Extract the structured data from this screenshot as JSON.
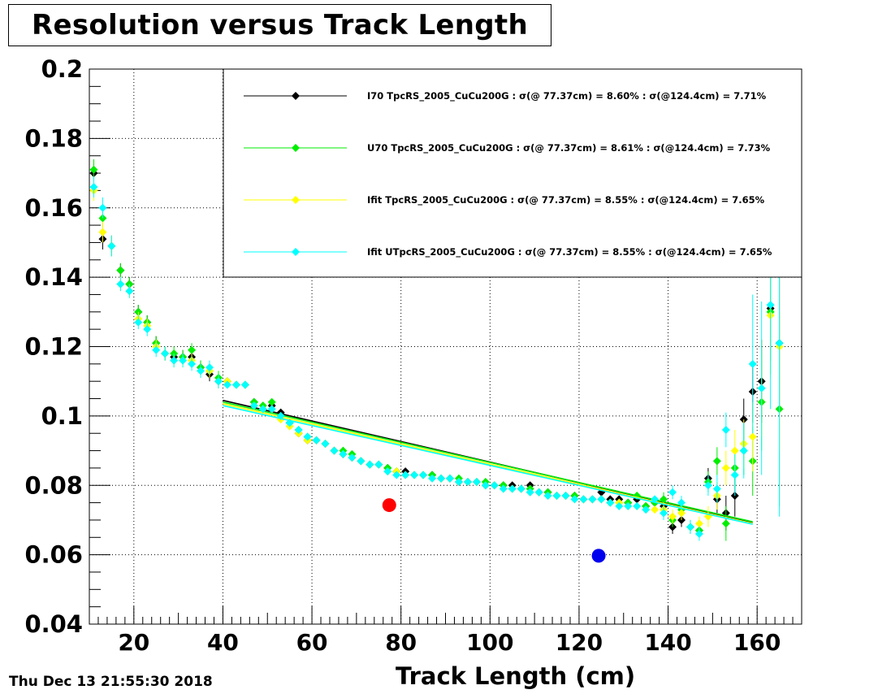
{
  "chart_data": {
    "type": "scatter",
    "title": "Resolution versus Track Length",
    "xlabel": "Track Length (cm)",
    "ylabel": "",
    "xlim": [
      10,
      170
    ],
    "ylim": [
      0.04,
      0.2
    ],
    "xticks": [
      20,
      40,
      60,
      80,
      100,
      120,
      140,
      160
    ],
    "yticks": [
      0.04,
      0.06,
      0.08,
      0.1,
      0.12,
      0.14,
      0.16,
      0.18,
      0.2
    ],
    "ytick_labels": [
      "0.04",
      "0.06",
      "0.08",
      "0.1",
      "0.12",
      "0.14",
      "0.16",
      "0.18",
      "0.2"
    ],
    "grid": true,
    "legend_position": "top-right",
    "timestamp": "Thu Dec 13 21:55:30 2018",
    "series": [
      {
        "name": "I70  TpcRS_2005_CuCu200G : σ(@ 77.37cm) =  8.60% : σ(@124.4cm) =  7.71%",
        "color": "#000000",
        "x": [
          11,
          13,
          15,
          17,
          19,
          21,
          23,
          25,
          27,
          29,
          31,
          33,
          35,
          37,
          39,
          41,
          43,
          45,
          47,
          49,
          51,
          53,
          55,
          57,
          59,
          61,
          63,
          65,
          67,
          69,
          71,
          73,
          75,
          77,
          79,
          81,
          83,
          85,
          87,
          89,
          91,
          93,
          95,
          97,
          99,
          101,
          103,
          105,
          107,
          109,
          111,
          113,
          115,
          117,
          119,
          121,
          123,
          125,
          127,
          129,
          131,
          133,
          135,
          137,
          139,
          141,
          143,
          145,
          147,
          149,
          151,
          153,
          155,
          157,
          159,
          161,
          163,
          165
        ],
        "y": [
          0.17,
          0.151,
          0.149,
          0.142,
          0.138,
          0.13,
          0.127,
          0.121,
          0.118,
          0.117,
          0.117,
          0.117,
          0.114,
          0.112,
          0.11,
          0.11,
          0.109,
          0.109,
          0.104,
          0.102,
          0.103,
          0.101,
          0.098,
          0.095,
          0.093,
          0.093,
          0.092,
          0.09,
          0.089,
          0.088,
          0.087,
          0.086,
          0.086,
          0.085,
          0.084,
          0.084,
          0.083,
          0.083,
          0.083,
          0.082,
          0.082,
          0.081,
          0.081,
          0.081,
          0.08,
          0.08,
          0.08,
          0.08,
          0.079,
          0.08,
          0.078,
          0.078,
          0.077,
          0.077,
          0.077,
          0.076,
          0.076,
          0.078,
          0.076,
          0.076,
          0.075,
          0.076,
          0.074,
          0.075,
          0.074,
          0.068,
          0.07,
          0.068,
          0.067,
          0.082,
          0.076,
          0.072,
          0.077,
          0.099,
          0.107,
          0.11,
          0.131,
          0.121
        ],
        "yerr": [
          0.003,
          0.003,
          0.003,
          0.002,
          0.002,
          0.002,
          0.002,
          0.002,
          0.002,
          0.002,
          0.002,
          0.002,
          0.002,
          0.002,
          0.002,
          0.001,
          0.001,
          0.001,
          0.001,
          0.001,
          0.001,
          0.001,
          0.001,
          0.001,
          0.001,
          0.001,
          0.001,
          0.001,
          0.001,
          0.001,
          0.001,
          0.001,
          0.001,
          0.001,
          0.001,
          0.001,
          0.001,
          0.001,
          0.001,
          0.001,
          0.001,
          0.001,
          0.001,
          0.001,
          0.001,
          0.001,
          0.001,
          0.001,
          0.001,
          0.001,
          0.001,
          0.001,
          0.001,
          0.001,
          0.001,
          0.001,
          0.001,
          0.001,
          0.001,
          0.001,
          0.001,
          0.001,
          0.001,
          0.001,
          0.002,
          0.002,
          0.002,
          0.002,
          0.002,
          0.003,
          0.004,
          0.005,
          0.006,
          0.006,
          0.009,
          0.012,
          0.015,
          0.02
        ],
        "fit_x": [
          40,
          159
        ],
        "fit_y": [
          0.1045,
          0.0692
        ]
      },
      {
        "name": "U70  TpcRS_2005_CuCu200G : σ(@ 77.37cm) =  8.61% : σ(@124.4cm) =  7.73%",
        "color": "#00ee00",
        "x": [
          11,
          13,
          15,
          17,
          19,
          21,
          23,
          25,
          27,
          29,
          31,
          33,
          35,
          37,
          39,
          41,
          43,
          45,
          47,
          49,
          51,
          53,
          55,
          57,
          59,
          61,
          63,
          65,
          67,
          69,
          71,
          73,
          75,
          77,
          79,
          81,
          83,
          85,
          87,
          89,
          91,
          93,
          95,
          97,
          99,
          101,
          103,
          105,
          107,
          109,
          111,
          113,
          115,
          117,
          119,
          121,
          123,
          125,
          127,
          129,
          131,
          133,
          135,
          137,
          139,
          141,
          143,
          145,
          147,
          149,
          151,
          153,
          155,
          157,
          159,
          161,
          163,
          165
        ],
        "y": [
          0.171,
          0.157,
          0.149,
          0.142,
          0.138,
          0.13,
          0.127,
          0.121,
          0.118,
          0.118,
          0.117,
          0.119,
          0.114,
          0.113,
          0.111,
          0.11,
          0.109,
          0.109,
          0.104,
          0.103,
          0.104,
          0.1,
          0.098,
          0.096,
          0.094,
          0.093,
          0.092,
          0.09,
          0.09,
          0.089,
          0.087,
          0.086,
          0.086,
          0.085,
          0.084,
          0.083,
          0.083,
          0.083,
          0.083,
          0.082,
          0.082,
          0.082,
          0.081,
          0.081,
          0.081,
          0.08,
          0.08,
          0.079,
          0.079,
          0.079,
          0.078,
          0.078,
          0.077,
          0.077,
          0.077,
          0.076,
          0.076,
          0.076,
          0.075,
          0.075,
          0.075,
          0.077,
          0.074,
          0.075,
          0.076,
          0.07,
          0.073,
          0.068,
          0.067,
          0.081,
          0.087,
          0.069,
          0.085,
          0.09,
          0.087,
          0.104,
          0.13,
          0.102
        ],
        "yerr": [
          0.003,
          0.003,
          0.003,
          0.002,
          0.002,
          0.002,
          0.002,
          0.002,
          0.002,
          0.002,
          0.002,
          0.002,
          0.002,
          0.002,
          0.002,
          0.001,
          0.001,
          0.001,
          0.001,
          0.001,
          0.001,
          0.001,
          0.001,
          0.001,
          0.001,
          0.001,
          0.001,
          0.001,
          0.001,
          0.001,
          0.001,
          0.001,
          0.001,
          0.001,
          0.001,
          0.001,
          0.001,
          0.001,
          0.001,
          0.001,
          0.001,
          0.001,
          0.001,
          0.001,
          0.001,
          0.001,
          0.001,
          0.001,
          0.001,
          0.001,
          0.001,
          0.001,
          0.001,
          0.001,
          0.001,
          0.001,
          0.001,
          0.001,
          0.001,
          0.001,
          0.001,
          0.001,
          0.001,
          0.001,
          0.002,
          0.002,
          0.002,
          0.002,
          0.002,
          0.003,
          0.004,
          0.005,
          0.006,
          0.007,
          0.01,
          0.014,
          0.018,
          0.028
        ],
        "fit_x": [
          40,
          159
        ],
        "fit_y": [
          0.104,
          0.0695
        ]
      },
      {
        "name": "Ifit TpcRS_2005_CuCu200G : σ(@ 77.37cm) =  8.55% : σ(@124.4cm) =  7.65%",
        "color": "#ffff00",
        "x": [
          11,
          13,
          15,
          17,
          19,
          21,
          23,
          25,
          27,
          29,
          31,
          33,
          35,
          37,
          39,
          41,
          43,
          45,
          47,
          49,
          51,
          53,
          55,
          57,
          59,
          61,
          63,
          65,
          67,
          69,
          71,
          73,
          75,
          77,
          79,
          81,
          83,
          85,
          87,
          89,
          91,
          93,
          95,
          97,
          99,
          101,
          103,
          105,
          107,
          109,
          111,
          113,
          115,
          117,
          119,
          121,
          123,
          125,
          127,
          129,
          131,
          133,
          135,
          137,
          139,
          141,
          143,
          145,
          147,
          149,
          151,
          153,
          155,
          157,
          159,
          161,
          163,
          165
        ],
        "y": [
          0.165,
          0.153,
          0.149,
          0.138,
          0.136,
          0.128,
          0.126,
          0.12,
          0.118,
          0.116,
          0.116,
          0.116,
          0.113,
          0.113,
          0.11,
          0.11,
          0.109,
          0.109,
          0.103,
          0.102,
          0.102,
          0.099,
          0.097,
          0.095,
          0.093,
          0.093,
          0.092,
          0.09,
          0.089,
          0.088,
          0.087,
          0.086,
          0.086,
          0.084,
          0.084,
          0.083,
          0.083,
          0.083,
          0.082,
          0.082,
          0.082,
          0.081,
          0.081,
          0.081,
          0.08,
          0.08,
          0.079,
          0.079,
          0.079,
          0.078,
          0.078,
          0.077,
          0.077,
          0.077,
          0.076,
          0.076,
          0.076,
          0.076,
          0.075,
          0.075,
          0.074,
          0.074,
          0.073,
          0.073,
          0.073,
          0.071,
          0.072,
          0.068,
          0.069,
          0.071,
          0.077,
          0.085,
          0.09,
          0.092,
          0.094,
          0.108,
          0.129,
          0.12
        ],
        "yerr": [
          0.003,
          0.003,
          0.003,
          0.002,
          0.002,
          0.002,
          0.002,
          0.002,
          0.002,
          0.002,
          0.002,
          0.002,
          0.002,
          0.002,
          0.002,
          0.001,
          0.001,
          0.001,
          0.001,
          0.001,
          0.001,
          0.001,
          0.001,
          0.001,
          0.001,
          0.001,
          0.001,
          0.001,
          0.001,
          0.001,
          0.001,
          0.001,
          0.001,
          0.001,
          0.001,
          0.001,
          0.001,
          0.001,
          0.001,
          0.001,
          0.001,
          0.001,
          0.001,
          0.001,
          0.001,
          0.001,
          0.001,
          0.001,
          0.001,
          0.001,
          0.001,
          0.001,
          0.001,
          0.001,
          0.001,
          0.001,
          0.001,
          0.001,
          0.001,
          0.001,
          0.001,
          0.001,
          0.001,
          0.001,
          0.002,
          0.002,
          0.002,
          0.002,
          0.002,
          0.003,
          0.004,
          0.005,
          0.006,
          0.007,
          0.01,
          0.014,
          0.018,
          0.03
        ],
        "fit_x": [
          40,
          159
        ],
        "fit_y": [
          0.1035,
          0.069
        ]
      },
      {
        "name": "Ifit UTpcRS_2005_CuCu200G : σ(@ 77.37cm) =  8.55% : σ(@124.4cm) =  7.65%",
        "color": "#00ffff",
        "x": [
          11,
          13,
          15,
          17,
          19,
          21,
          23,
          25,
          27,
          29,
          31,
          33,
          35,
          37,
          39,
          41,
          43,
          45,
          47,
          49,
          51,
          53,
          55,
          57,
          59,
          61,
          63,
          65,
          67,
          69,
          71,
          73,
          75,
          77,
          79,
          81,
          83,
          85,
          87,
          89,
          91,
          93,
          95,
          97,
          99,
          101,
          103,
          105,
          107,
          109,
          111,
          113,
          115,
          117,
          119,
          121,
          123,
          125,
          127,
          129,
          131,
          133,
          135,
          137,
          139,
          141,
          143,
          145,
          147,
          149,
          151,
          153,
          155,
          157,
          159,
          161,
          163,
          165
        ],
        "y": [
          0.166,
          0.16,
          0.149,
          0.138,
          0.136,
          0.127,
          0.125,
          0.119,
          0.118,
          0.116,
          0.116,
          0.115,
          0.113,
          0.114,
          0.11,
          0.109,
          0.109,
          0.109,
          0.103,
          0.102,
          0.102,
          0.1,
          0.098,
          0.096,
          0.094,
          0.093,
          0.092,
          0.09,
          0.089,
          0.088,
          0.087,
          0.086,
          0.086,
          0.084,
          0.083,
          0.083,
          0.083,
          0.083,
          0.082,
          0.082,
          0.082,
          0.081,
          0.081,
          0.081,
          0.08,
          0.08,
          0.079,
          0.079,
          0.079,
          0.078,
          0.078,
          0.077,
          0.077,
          0.077,
          0.076,
          0.076,
          0.076,
          0.076,
          0.075,
          0.074,
          0.074,
          0.074,
          0.073,
          0.076,
          0.072,
          0.078,
          0.075,
          0.068,
          0.066,
          0.08,
          0.079,
          0.096,
          0.083,
          0.09,
          0.115,
          0.108,
          0.132,
          0.121
        ],
        "yerr": [
          0.003,
          0.003,
          0.003,
          0.002,
          0.002,
          0.002,
          0.002,
          0.002,
          0.002,
          0.002,
          0.002,
          0.002,
          0.002,
          0.002,
          0.002,
          0.001,
          0.001,
          0.001,
          0.001,
          0.001,
          0.001,
          0.001,
          0.001,
          0.001,
          0.001,
          0.001,
          0.001,
          0.001,
          0.001,
          0.001,
          0.001,
          0.001,
          0.001,
          0.001,
          0.001,
          0.001,
          0.001,
          0.001,
          0.001,
          0.001,
          0.001,
          0.001,
          0.001,
          0.001,
          0.001,
          0.001,
          0.001,
          0.001,
          0.001,
          0.001,
          0.001,
          0.001,
          0.001,
          0.001,
          0.001,
          0.001,
          0.001,
          0.001,
          0.001,
          0.001,
          0.001,
          0.001,
          0.001,
          0.001,
          0.002,
          0.002,
          0.002,
          0.002,
          0.002,
          0.003,
          0.004,
          0.005,
          0.006,
          0.008,
          0.02,
          0.025,
          0.03,
          0.05
        ],
        "fit_x": [
          40,
          159
        ],
        "fit_y": [
          0.103,
          0.0688
        ]
      }
    ],
    "markers": [
      {
        "x": 77.37,
        "y": 0.0743,
        "color": "#ff0000"
      },
      {
        "x": 124.4,
        "y": 0.0597,
        "color": "#0000ee"
      }
    ]
  }
}
